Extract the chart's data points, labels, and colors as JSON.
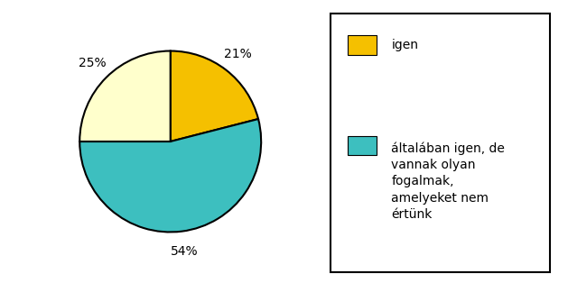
{
  "slices": [
    21,
    54,
    25
  ],
  "colors": [
    "#F5C000",
    "#3DBFBF",
    "#FFFFCC"
  ],
  "pct_labels": [
    "21%",
    "54%",
    "25%"
  ],
  "legend_entries": [
    {
      "label": "igen",
      "color": "#F5C000"
    },
    {
      "label": "általában igen, de\nvannak olyan\nfogalmak,\namelyeket nem\nértünk",
      "color": "#3DBFBF"
    }
  ],
  "start_angle": 90,
  "background_color": "#ffffff",
  "edge_color": "#000000",
  "edge_width": 1.5,
  "pct_fontsize": 10,
  "legend_fontsize": 10
}
